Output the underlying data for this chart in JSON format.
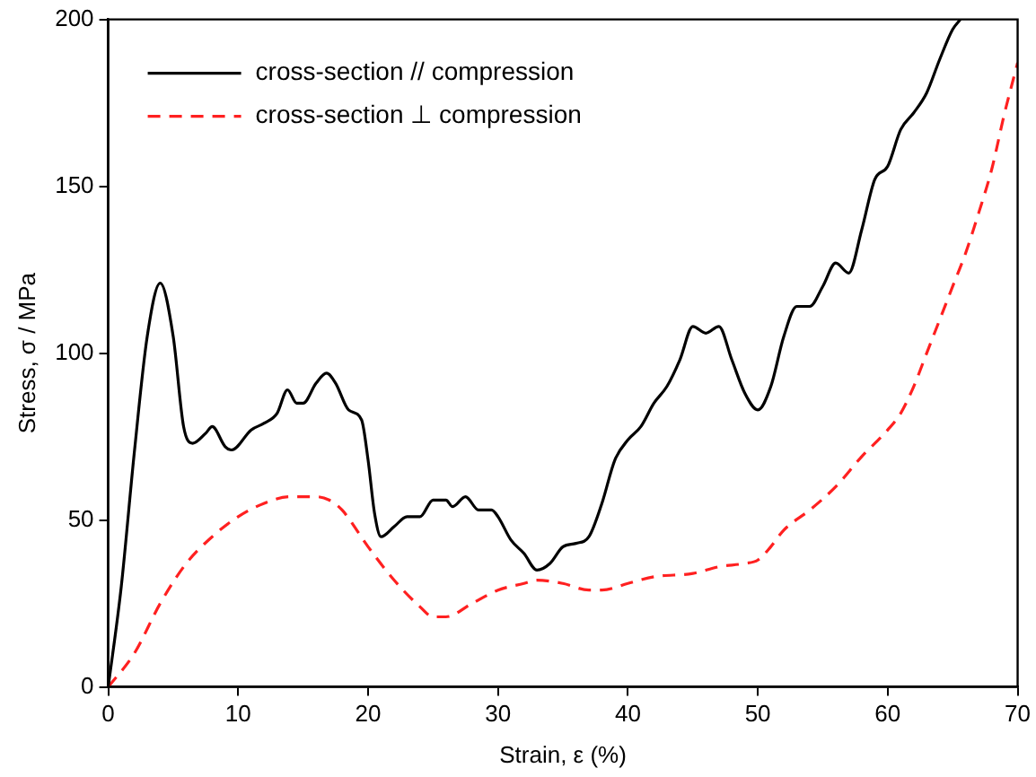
{
  "chart_data": {
    "type": "line",
    "xlabel": "Strain, ε (%)",
    "ylabel": "Stress, σ / MPa",
    "xlim": [
      0,
      70
    ],
    "xticks": [
      0,
      10,
      20,
      30,
      40,
      50,
      60,
      70
    ],
    "ylim": [
      0,
      200
    ],
    "yticks": [
      0,
      50,
      100,
      150,
      200
    ],
    "grid": false,
    "legend": "top left",
    "marker": "none",
    "series": [
      {
        "name": "cross-section // compression",
        "color": "#000000",
        "line_style": "solid",
        "x": [
          0,
          1,
          2,
          3,
          4,
          5,
          5.8,
          6.5,
          7.5,
          8,
          9,
          9.5,
          11,
          12,
          13,
          13.8,
          14.5,
          15,
          16,
          16.8,
          17.5,
          18.5,
          19.5,
          20,
          20.5,
          21,
          22,
          23,
          24,
          25,
          26,
          26.5,
          27.5,
          28.5,
          29.5,
          30,
          31,
          32,
          33,
          34,
          35,
          36,
          37,
          38,
          39,
          40,
          41,
          42,
          43,
          44,
          45,
          46,
          47,
          48,
          49,
          50,
          51,
          52,
          53,
          54,
          55,
          56,
          57,
          58,
          59,
          60,
          61,
          62,
          63,
          64,
          65,
          65.6
        ],
        "values": [
          0,
          30,
          70,
          105,
          121,
          105,
          78,
          73,
          76,
          78,
          72,
          71,
          77,
          79,
          82,
          89,
          85,
          85,
          91,
          94,
          91,
          83,
          80,
          68,
          52,
          45,
          48,
          51,
          51,
          56,
          56,
          54,
          57,
          53,
          53,
          51,
          44,
          40,
          35,
          37,
          42,
          43,
          45,
          55,
          68,
          74,
          78,
          85,
          90,
          98,
          108,
          106,
          108,
          98,
          88,
          83,
          90,
          105,
          114,
          114,
          120,
          127,
          124,
          137,
          152,
          156,
          167,
          172,
          178,
          188,
          197,
          200
        ]
      },
      {
        "name": "cross-section ⊥ compression",
        "color": "#ff2020",
        "line_style": "dashed",
        "x": [
          0,
          2,
          4,
          6,
          8,
          10,
          12,
          14,
          16,
          17,
          18,
          20,
          22,
          24,
          25,
          26,
          28,
          30,
          32,
          33,
          35,
          37,
          38,
          40,
          42,
          45,
          47,
          49,
          50,
          51,
          52,
          54,
          56,
          58,
          60,
          61,
          62,
          63,
          64,
          65,
          66,
          67,
          68,
          69,
          70
        ],
        "values": [
          0,
          10,
          25,
          37,
          45,
          51,
          55,
          57,
          57,
          56,
          53,
          42,
          32,
          24,
          21,
          21,
          25,
          29,
          31,
          32,
          31,
          29,
          29,
          31,
          33,
          34,
          36,
          37,
          38,
          42,
          47,
          53,
          60,
          69,
          77,
          82,
          90,
          100,
          110,
          120,
          130,
          142,
          155,
          172,
          187
        ]
      }
    ]
  }
}
